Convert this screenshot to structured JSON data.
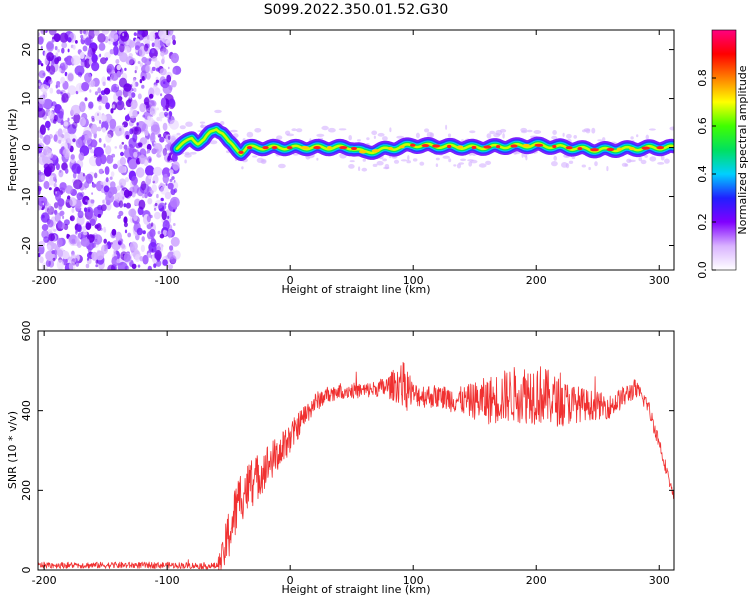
{
  "figure_title": "S099.2022.350.01.52.G30",
  "chart_data": [
    {
      "type": "heatmap",
      "title": "",
      "xlabel": "Height of straight line (km)",
      "ylabel": "Frequency (Hz)",
      "xlim": [
        -205,
        312
      ],
      "ylim": [
        -25,
        24
      ],
      "xticks": [
        -200,
        -100,
        0,
        100,
        200,
        300
      ],
      "yticks": [
        -20,
        -10,
        0,
        10,
        20
      ],
      "colorbar": {
        "label": "Normalized spectral amplitude",
        "range": [
          0,
          1
        ],
        "ticks": [
          "0.0",
          "0.2",
          "0.4",
          "0.6",
          "0.8"
        ],
        "colors": [
          "#ffffff",
          "#d9b3ff",
          "#8000ff",
          "#2020ff",
          "#00d0ff",
          "#00e060",
          "#40ff00",
          "#ffff00",
          "#ff8000",
          "#ff0000",
          "#ff0080"
        ]
      },
      "noise_region_x": [
        -205,
        -92
      ],
      "signal_track": {
        "x": [
          -92,
          -85,
          -80,
          -75,
          -70,
          -65,
          -60,
          -55,
          -50,
          -45,
          -40,
          -35,
          0,
          50,
          55,
          60,
          100,
          150,
          200,
          250,
          300,
          312
        ],
        "freq": [
          0,
          1,
          2,
          1,
          1.5,
          3,
          4,
          3,
          1,
          0,
          -1,
          0,
          0,
          0,
          -0.5,
          -1,
          0.5,
          0,
          0.5,
          -0.5,
          0,
          0
        ]
      }
    },
    {
      "type": "line",
      "title": "",
      "xlabel": "Height of straight line (km)",
      "ylabel": "SNR (10 * v/v)",
      "xlim": [
        -205,
        312
      ],
      "ylim": [
        0,
        600
      ],
      "xticks": [
        -200,
        -100,
        0,
        100,
        200,
        300
      ],
      "yticks": [
        0,
        200,
        400,
        600
      ],
      "series": [
        {
          "color": "#f03030",
          "x": [
            -205,
            -150,
            -100,
            -60,
            -55,
            -50,
            -45,
            -40,
            -30,
            -20,
            -10,
            0,
            10,
            20,
            30,
            40,
            50,
            60,
            70,
            80,
            90,
            95,
            100,
            120,
            140,
            160,
            180,
            200,
            220,
            240,
            260,
            280,
            290,
            300,
            312
          ],
          "values": [
            12,
            12,
            12,
            10,
            30,
            90,
            140,
            190,
            220,
            260,
            290,
            330,
            380,
            420,
            440,
            450,
            450,
            450,
            455,
            460,
            470,
            460,
            440,
            435,
            425,
            425,
            440,
            445,
            420,
            415,
            410,
            455,
            420,
            320,
            180
          ],
          "noise_amplitude": [
            8,
            8,
            8,
            8,
            40,
            70,
            70,
            70,
            60,
            55,
            45,
            40,
            30,
            25,
            20,
            20,
            20,
            20,
            20,
            30,
            55,
            60,
            30,
            30,
            35,
            60,
            70,
            80,
            60,
            40,
            30,
            25,
            20,
            20,
            10
          ]
        }
      ]
    }
  ]
}
